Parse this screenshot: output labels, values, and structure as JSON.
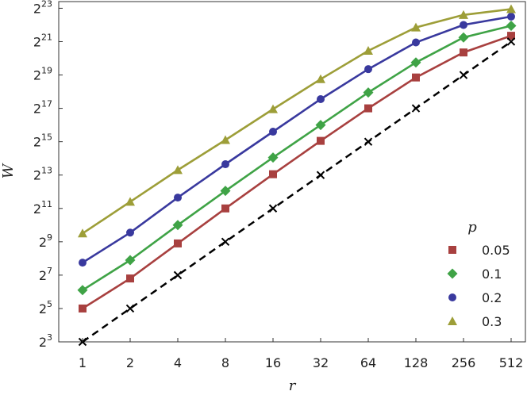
{
  "chart_data": {
    "type": "line",
    "xlabel": "r",
    "ylabel": "W",
    "x_scale": "log2",
    "y_scale": "log2",
    "x": [
      1,
      2,
      4,
      8,
      16,
      32,
      64,
      128,
      256,
      512
    ],
    "x_tick_labels": [
      "1",
      "2",
      "4",
      "8",
      "16",
      "32",
      "64",
      "128",
      "256",
      "512"
    ],
    "y_tick_exponents": [
      3,
      5,
      7,
      9,
      11,
      13,
      15,
      17,
      19,
      21,
      23
    ],
    "y_tick_base": "2",
    "ylim_log2": [
      3,
      23.4
    ],
    "xlim_log2": [
      -0.5,
      9.3
    ],
    "grid": false,
    "legend_title": "p",
    "legend_position": "lower-right",
    "series": [
      {
        "name": "0.05",
        "color": "#a8403f",
        "marker": "square",
        "log2_values": [
          5,
          6.8,
          8.9,
          11,
          13.05,
          15.05,
          17,
          18.85,
          20.35,
          21.35
        ]
      },
      {
        "name": "0.1",
        "color": "#3fa346",
        "marker": "diamond",
        "log2_values": [
          6.1,
          7.9,
          10,
          12.05,
          14.05,
          16,
          17.95,
          19.75,
          21.25,
          21.95
        ]
      },
      {
        "name": "0.2",
        "color": "#39399e",
        "marker": "circle",
        "log2_values": [
          7.75,
          9.55,
          11.65,
          13.65,
          15.6,
          17.55,
          19.35,
          20.95,
          22.0,
          22.5
        ]
      },
      {
        "name": "0.3",
        "color": "#9d9e38",
        "marker": "triangle",
        "log2_values": [
          9.5,
          11.4,
          13.3,
          15.1,
          16.95,
          18.75,
          20.45,
          21.85,
          22.6,
          22.95
        ]
      },
      {
        "name": "",
        "color": "#000000",
        "marker": "x",
        "line_style": "dashed",
        "log2_values": [
          3,
          5,
          7,
          9,
          11,
          13,
          15,
          17,
          19,
          21
        ]
      }
    ]
  }
}
